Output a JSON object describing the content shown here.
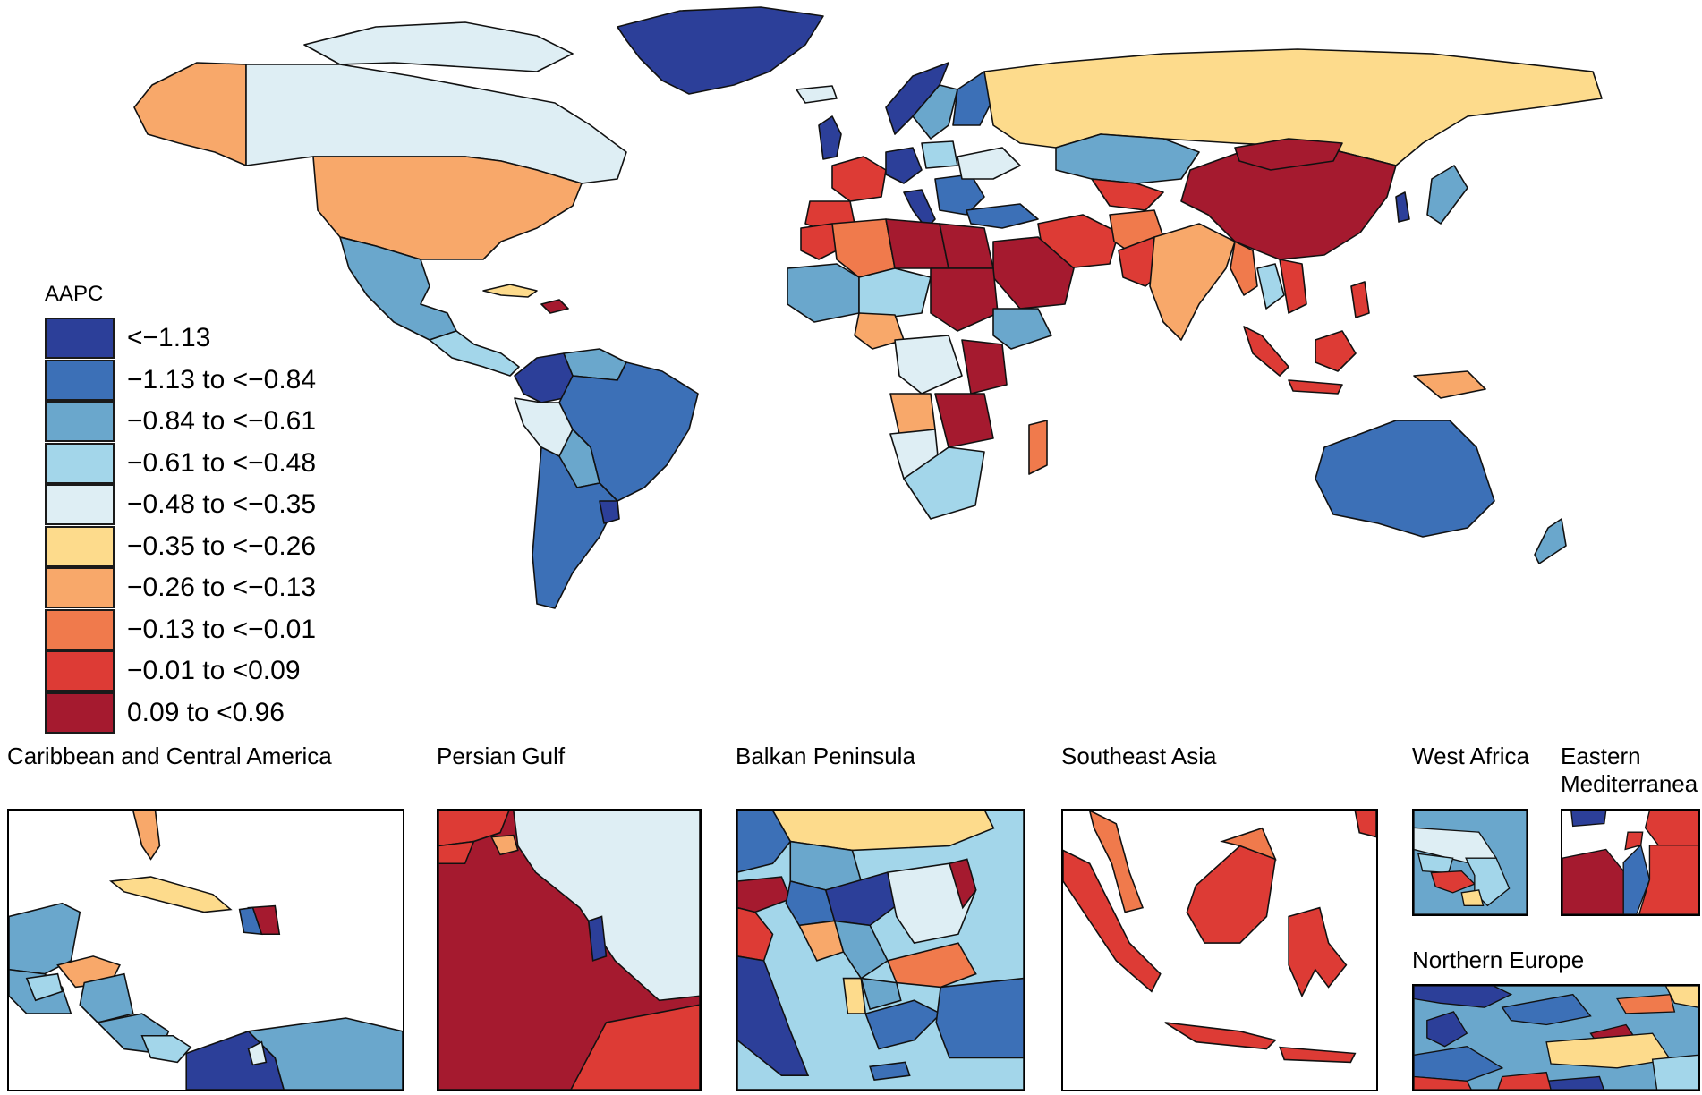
{
  "legend": {
    "title": "AAPC",
    "items": [
      {
        "label": "<−1.13",
        "color": "#2c3f99"
      },
      {
        "label": "−1.13 to <−0.84",
        "color": "#3c70b7"
      },
      {
        "label": "−0.84 to <−0.61",
        "color": "#6aa7cc"
      },
      {
        "label": "−0.61 to <−0.48",
        "color": "#a3d6ea"
      },
      {
        "label": "−0.48 to <−0.35",
        "color": "#deeef4"
      },
      {
        "label": "−0.35 to <−0.26",
        "color": "#fddb8c"
      },
      {
        "label": "−0.26 to <−0.13",
        "color": "#f8a86a"
      },
      {
        "label": "−0.13 to <−0.01",
        "color": "#f07a4c"
      },
      {
        "label": "−0.01 to <0.09",
        "color": "#dd3b35"
      },
      {
        "label": "0.09 to <0.96",
        "color": "#a51a2f"
      }
    ]
  },
  "insets": [
    {
      "title": "Caribbean and Central America"
    },
    {
      "title": "Persian Gulf"
    },
    {
      "title": "Balkan Peninsula"
    },
    {
      "title": "Southeast Asia"
    },
    {
      "title": "West Africa"
    },
    {
      "title": "Eastern\nMediterranea"
    },
    {
      "title": "Northern Europe"
    }
  ]
}
